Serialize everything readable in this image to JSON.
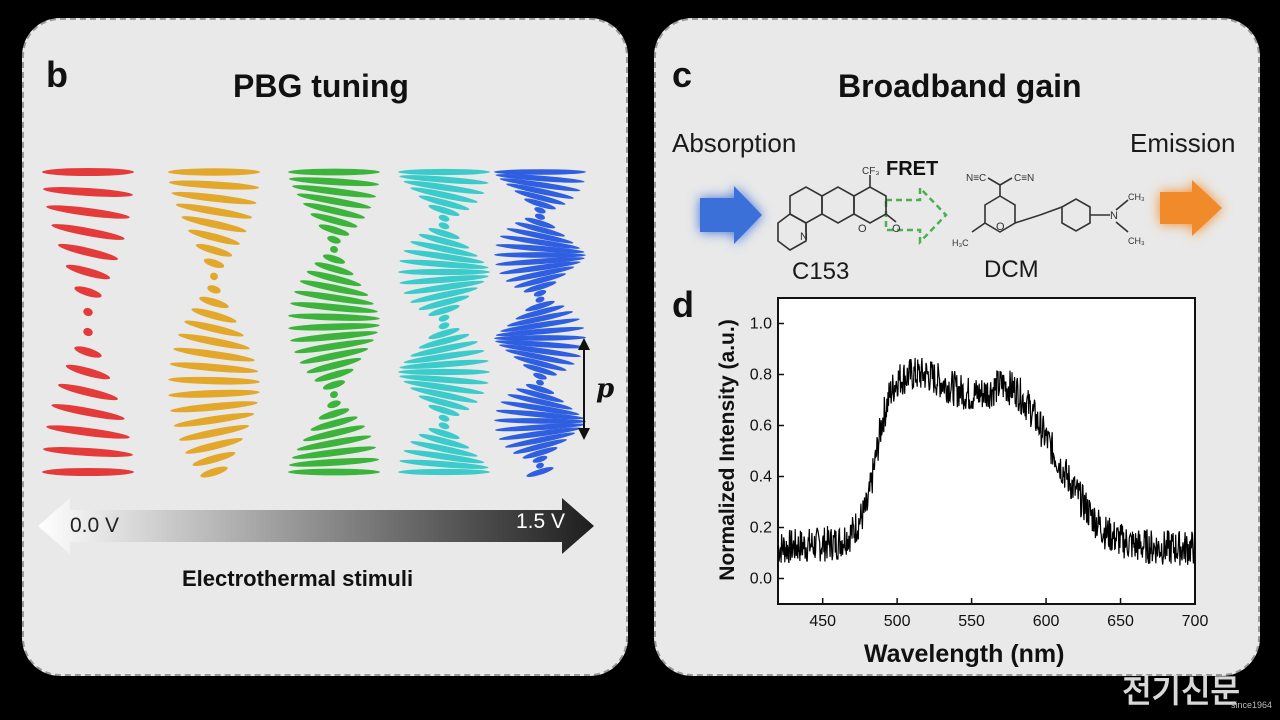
{
  "panel_b": {
    "letter": "b",
    "title": "PBG tuning",
    "pitch_label": "p",
    "voltage_start": "0.0 V",
    "voltage_end": "1.5 V",
    "stimulus_label": "Electrothermal stimuli",
    "helix_colors": [
      "#e53a3a",
      "#e3a72a",
      "#3cb43c",
      "#3ccbcb",
      "#2f5fe0"
    ],
    "helix_half_periods": [
      1,
      1.4,
      2,
      3,
      3.6
    ]
  },
  "panel_c": {
    "letter": "c",
    "title": "Broadband gain",
    "absorption_label": "Absorption",
    "emission_label": "Emission",
    "fret_label": "FRET",
    "donor_label": "C153",
    "acceptor_label": "DCM",
    "absorption_arrow_color": "#3a6fd8",
    "emission_arrow_color": "#f08a2c",
    "fret_arrow_color": "#4caf50"
  },
  "panel_d": {
    "letter": "d"
  },
  "chart_data": {
    "type": "line",
    "title": "",
    "xlabel": "Wavelength (nm)",
    "ylabel": "Normalized Intensity (a.u.)",
    "xlim": [
      420,
      700
    ],
    "ylim": [
      -0.1,
      1.1
    ],
    "xticks": [
      450,
      500,
      550,
      600,
      650,
      700
    ],
    "yticks": [
      0.0,
      0.2,
      0.4,
      0.6,
      0.8,
      1.0
    ],
    "ytick_labels": [
      "0.0",
      "0.2",
      "0.4",
      "0.6",
      "0.8",
      "1.0"
    ],
    "series": [
      {
        "x": [
          420,
          440,
          460,
          470,
          480,
          485,
          490,
          495,
          500,
          510,
          520,
          530,
          540,
          550,
          560,
          570,
          580,
          590,
          600,
          610,
          620,
          630,
          640,
          650,
          660,
          680,
          700
        ],
        "values": [
          0.12,
          0.13,
          0.14,
          0.18,
          0.28,
          0.45,
          0.62,
          0.72,
          0.78,
          0.8,
          0.8,
          0.77,
          0.74,
          0.72,
          0.73,
          0.76,
          0.74,
          0.66,
          0.55,
          0.44,
          0.34,
          0.25,
          0.18,
          0.15,
          0.13,
          0.12,
          0.12
        ]
      }
    ],
    "noise_amplitude": 0.07
  },
  "watermark": {
    "text": "전기신문",
    "since": "since1964"
  }
}
